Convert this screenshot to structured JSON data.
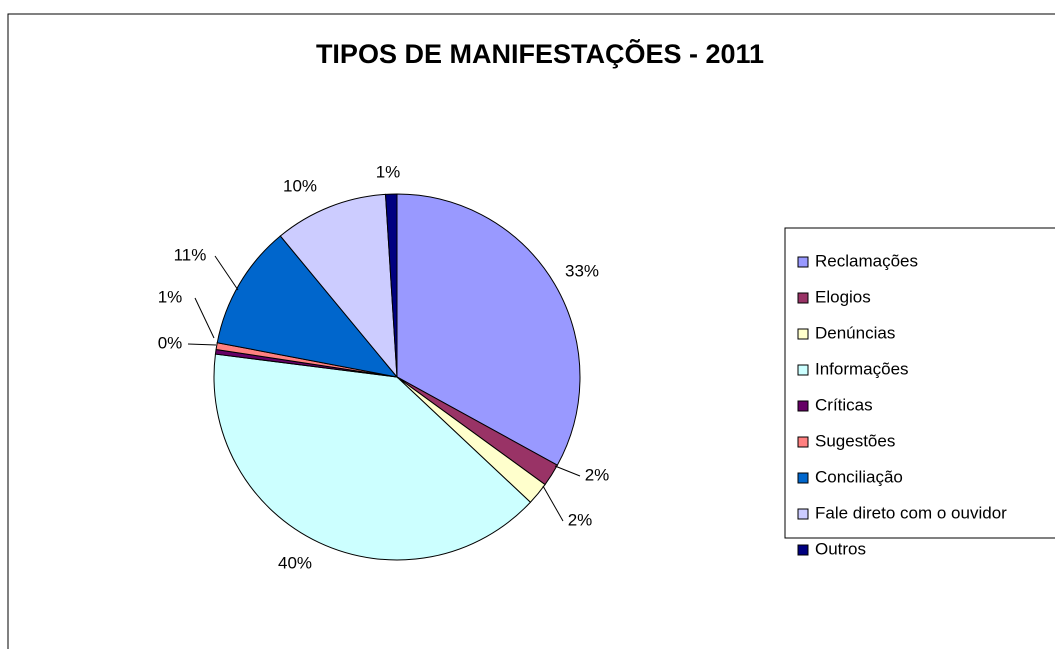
{
  "chart_data": {
    "type": "pie",
    "title": "TIPOS DE MANIFESTAÇÕES - 2011",
    "categories": [
      "Reclamações",
      "Elogios",
      "Denúncias",
      "Informações",
      "Críticas",
      "Sugestões",
      "Conciliação",
      "Fale direto com o ouvidor",
      "Outros"
    ],
    "values": [
      33,
      2,
      2,
      40,
      0.4,
      0.6,
      11,
      10,
      1
    ],
    "value_labels": [
      "33%",
      "2%",
      "2%",
      "40%",
      "0%",
      "1%",
      "11%",
      "10%",
      "1%"
    ],
    "colors": [
      "#9999ff",
      "#993366",
      "#ffffcc",
      "#ccffff",
      "#660066",
      "#ff8080",
      "#0066cc",
      "#ccccff",
      "#000080"
    ],
    "legend": "right"
  }
}
